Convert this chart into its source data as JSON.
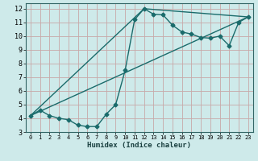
{
  "title": "",
  "xlabel": "Humidex (Indice chaleur)",
  "xlim": [
    -0.5,
    23.5
  ],
  "ylim": [
    3,
    12.4
  ],
  "xticks": [
    0,
    1,
    2,
    3,
    4,
    5,
    6,
    7,
    8,
    9,
    10,
    11,
    12,
    13,
    14,
    15,
    16,
    17,
    18,
    19,
    20,
    21,
    22,
    23
  ],
  "yticks": [
    3,
    4,
    5,
    6,
    7,
    8,
    9,
    10,
    11,
    12
  ],
  "bg_color": "#ceeaea",
  "grid_color": "#b8d4d4",
  "line_color": "#1a6b6b",
  "line_width": 1.0,
  "marker_size": 2.5,
  "series1_x": [
    0,
    1,
    2,
    3,
    4,
    5,
    6,
    7,
    8,
    9,
    10,
    11,
    12,
    13,
    14,
    15,
    16,
    17,
    18,
    19,
    20,
    21,
    22,
    23
  ],
  "series1_y": [
    4.2,
    4.6,
    4.2,
    4.0,
    3.9,
    3.5,
    3.4,
    3.4,
    4.3,
    5.0,
    7.5,
    11.2,
    12.0,
    11.6,
    11.55,
    10.8,
    10.3,
    10.15,
    9.9,
    9.85,
    10.0,
    9.3,
    11.0,
    11.4
  ],
  "series2_x": [
    0,
    23
  ],
  "series2_y": [
    4.2,
    11.4
  ],
  "series3_x": [
    0,
    12,
    23
  ],
  "series3_y": [
    4.2,
    12.0,
    11.4
  ]
}
